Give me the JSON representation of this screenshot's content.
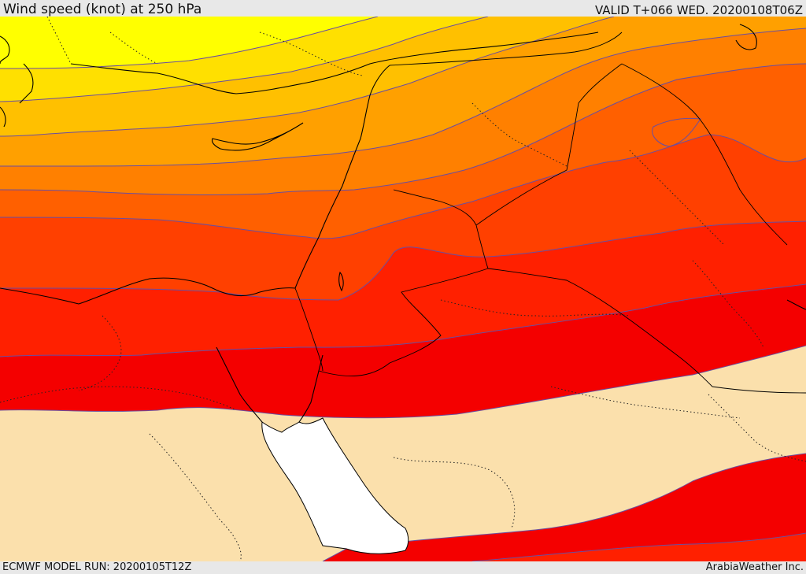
{
  "header": {
    "title": "Wind speed (knot) at 250 hPa",
    "valid": "VALID T+066 WED. 20200108T06Z"
  },
  "footer": {
    "model_run": "ECMWF MODEL RUN: 20200105T12Z",
    "credit": "ArabiaWeather Inc."
  },
  "map": {
    "region": "Eastern Mediterranean / Levant / Northern Arabia",
    "variable": "wind speed",
    "level": "250 hPa",
    "bands_north_to_south": [
      {
        "name": "band-1",
        "color": "#ffff00"
      },
      {
        "name": "band-2",
        "color": "#ffe000"
      },
      {
        "name": "band-3",
        "color": "#ffc000"
      },
      {
        "name": "band-4",
        "color": "#ffa000"
      },
      {
        "name": "band-5",
        "color": "#ff8000"
      },
      {
        "name": "band-6",
        "color": "#ff6000"
      },
      {
        "name": "band-7",
        "color": "#ff4000"
      },
      {
        "name": "band-8",
        "color": "#ff2000"
      },
      {
        "name": "band-9",
        "color": "#f40000"
      },
      {
        "name": "band-low",
        "color": "#fbe0ac"
      }
    ],
    "sea_color": "#ffffff",
    "contour_color": "#6a4ea0",
    "coast_color": "#000000"
  }
}
